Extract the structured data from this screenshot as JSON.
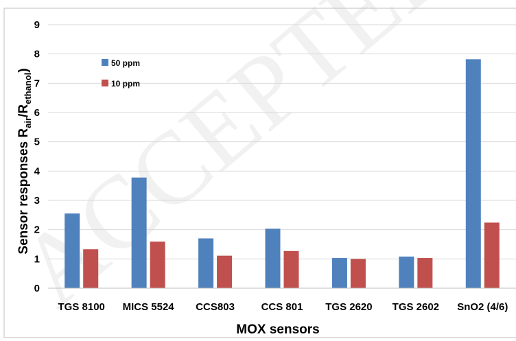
{
  "chart_data": {
    "type": "bar",
    "categories": [
      "TGS 8100",
      "MICS 5524",
      "CCS803",
      "CCS 801",
      "TGS 2620",
      "TGS 2602",
      "SnO2 (4/6)"
    ],
    "series": [
      {
        "name": "50 ppm",
        "color": "#4f81bd",
        "values": [
          2.55,
          3.78,
          1.7,
          2.03,
          1.03,
          1.08,
          7.82
        ]
      },
      {
        "name": "10 ppm",
        "color": "#c0504d",
        "values": [
          1.33,
          1.59,
          1.11,
          1.27,
          1.0,
          1.03,
          2.24
        ]
      }
    ],
    "xlabel": "MOX sensors",
    "ylabel": {
      "main": "Sensor responses  R",
      "sub1": "air",
      "mid": "/R",
      "sub2": "ethanol",
      "end": ")"
    },
    "ylim": [
      0,
      9
    ],
    "yticks": [
      "0",
      "1",
      "2",
      "3",
      "4",
      "5",
      "6",
      "7",
      "8",
      "9"
    ],
    "grid": true,
    "legend_position": "top-left"
  },
  "watermark": "ACCEPTED"
}
